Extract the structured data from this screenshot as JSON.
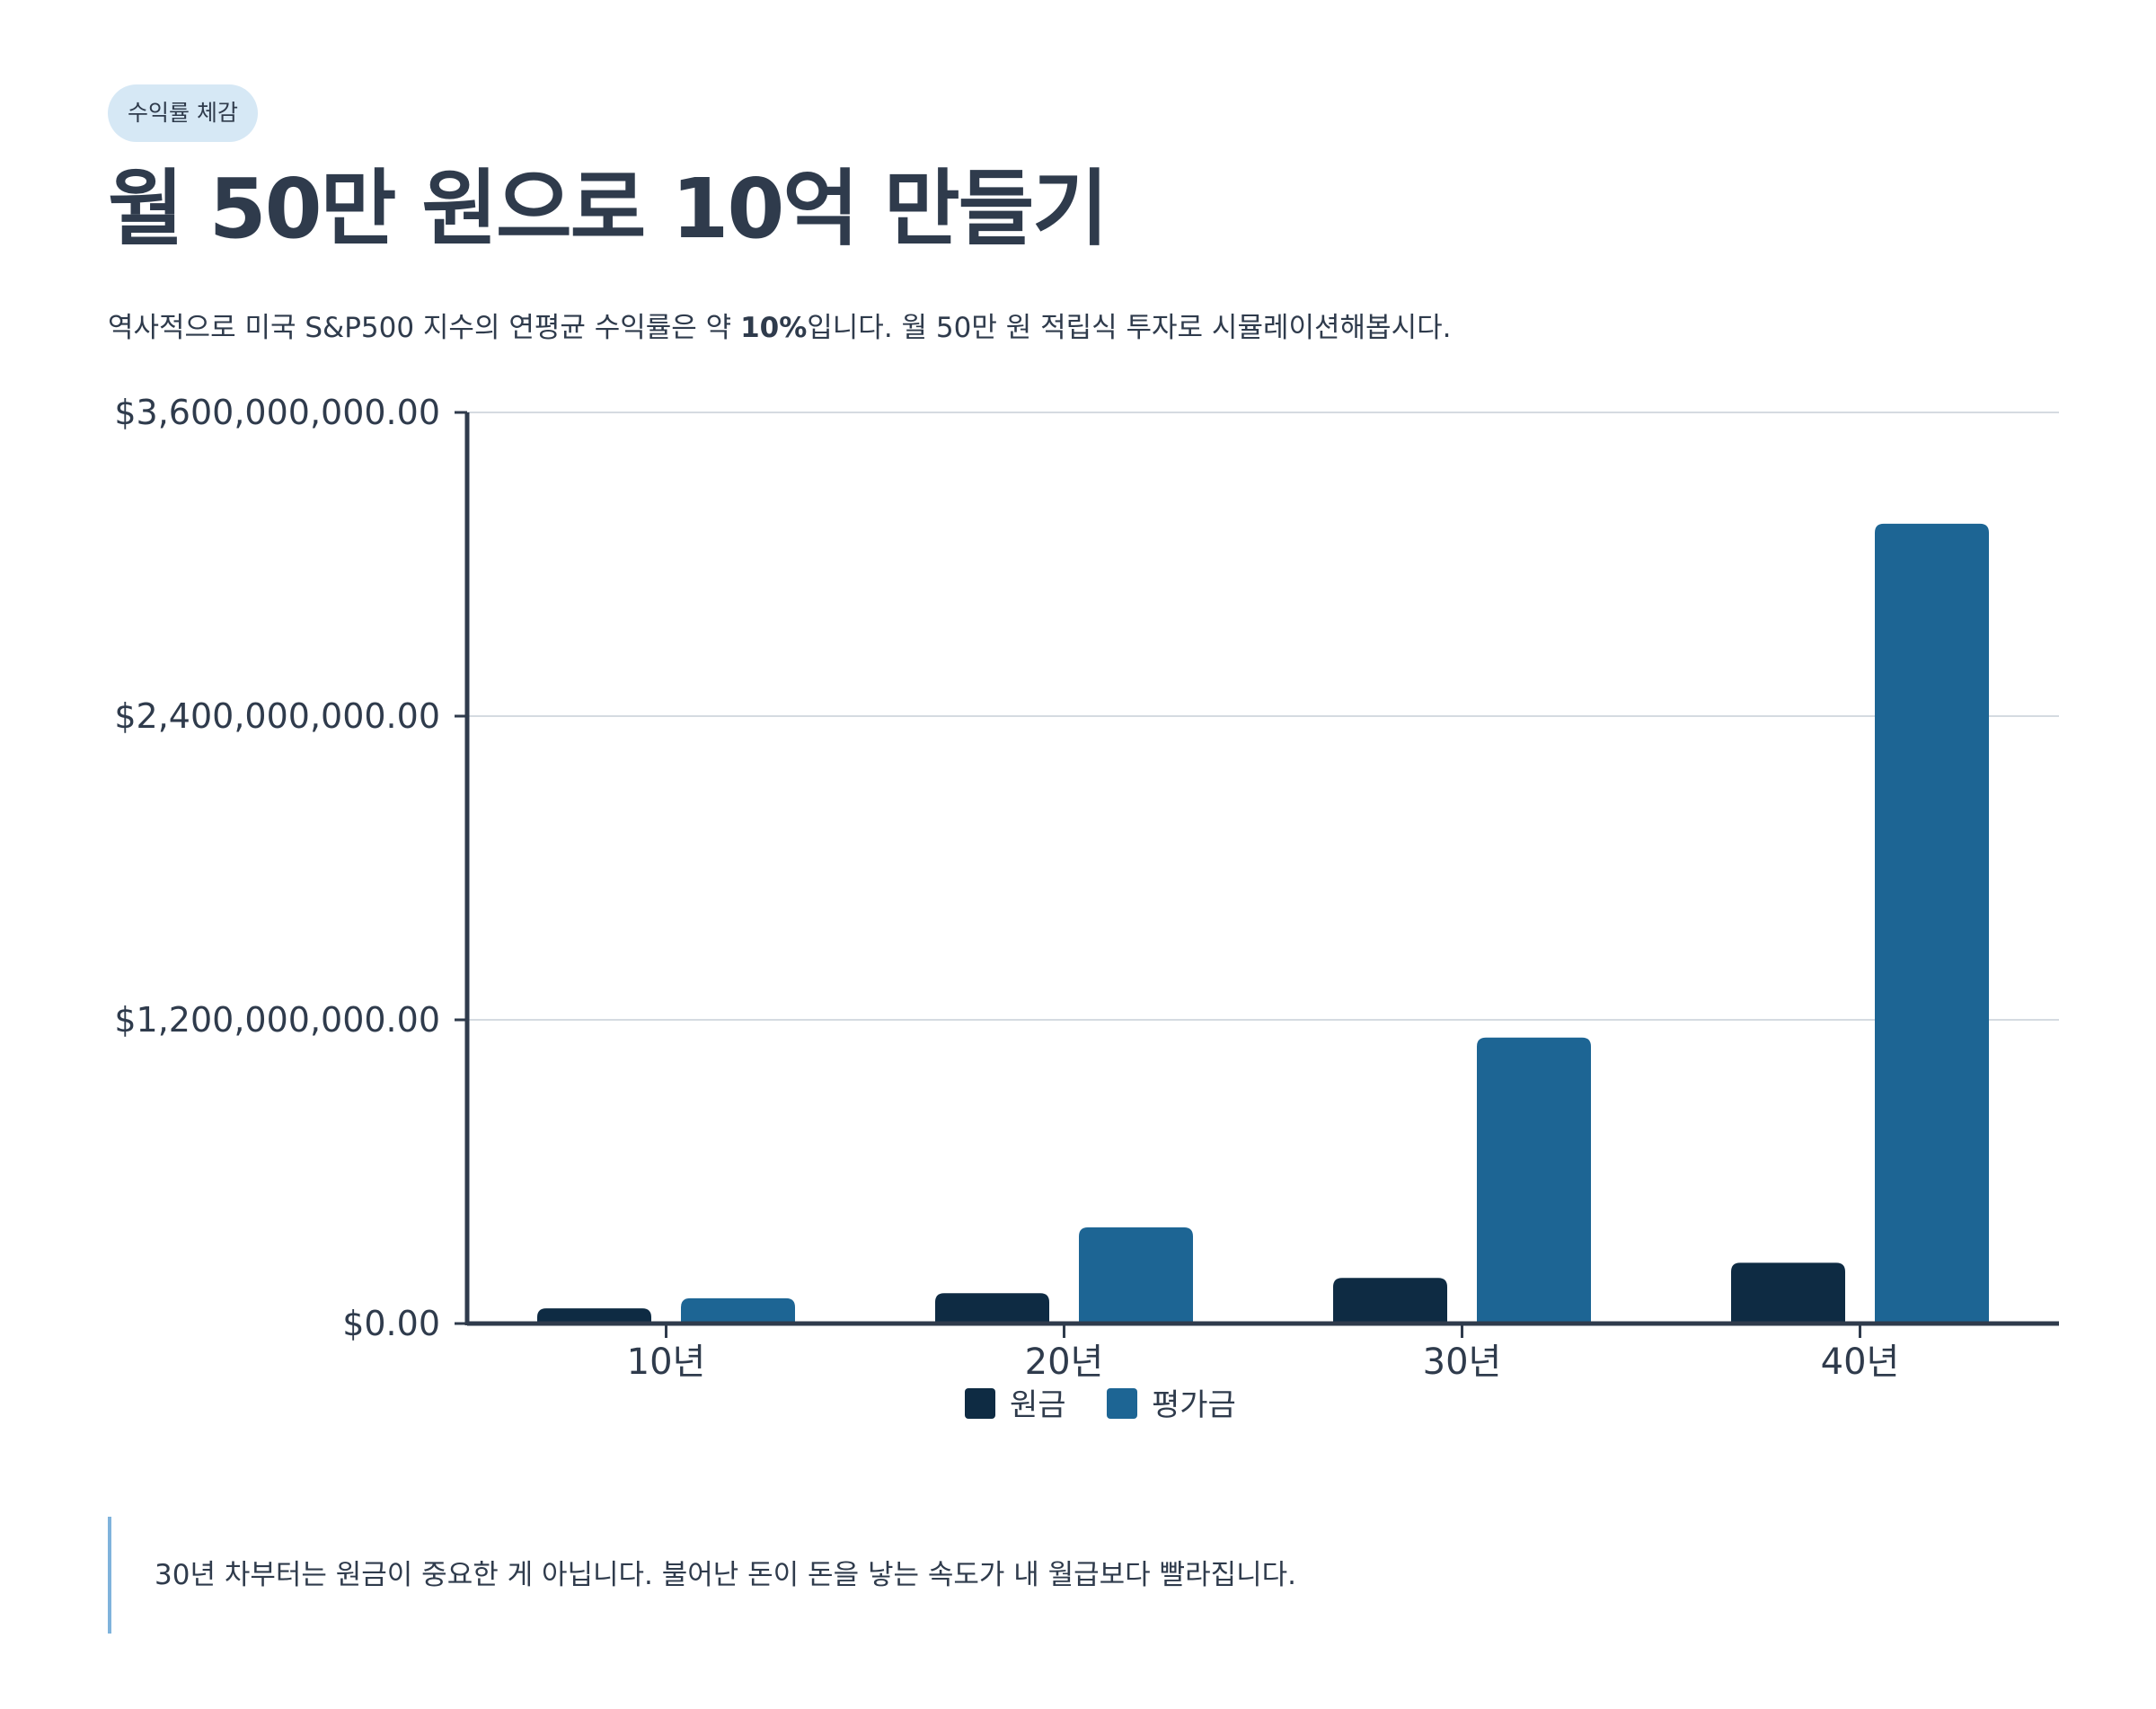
{
  "header": {
    "badge": "수익률 체감",
    "title": "월 50만 원으로 10억 만들기",
    "subtitle_before": "역사적으로 미국 S&P500 지수의 연평균 수익률은 약 ",
    "subtitle_bold": "10%",
    "subtitle_after": "입니다. 월 50만 원 적립식 투자로 시뮬레이션해봅시다."
  },
  "chart_data": {
    "type": "bar",
    "categories": [
      "10년",
      "20년",
      "30년",
      "40년"
    ],
    "series": [
      {
        "name": "원금",
        "values": [
          60000000,
          120000000,
          180000000,
          240000000
        ],
        "color": "#0e2b43"
      },
      {
        "name": "평가금",
        "values": [
          100000000,
          380000000,
          1130000000,
          3160000000
        ],
        "color": "#1d6594"
      }
    ],
    "y_ticks": [
      0,
      1200000000,
      2400000000,
      3600000000
    ],
    "y_tick_labels": [
      "$0.00",
      "$1,200,000,000.00",
      "$2,400,000,000.00",
      "$3,600,000,000.00"
    ],
    "ylim": [
      0,
      3600000000
    ],
    "grid": true,
    "legend_position": "bottom-center"
  },
  "note": {
    "text": "30년 차부터는 원금이 중요한 게 아닙니다. 불어난 돈이 돈을 낳는 속도가 내 월급보다 빨라집니다."
  }
}
